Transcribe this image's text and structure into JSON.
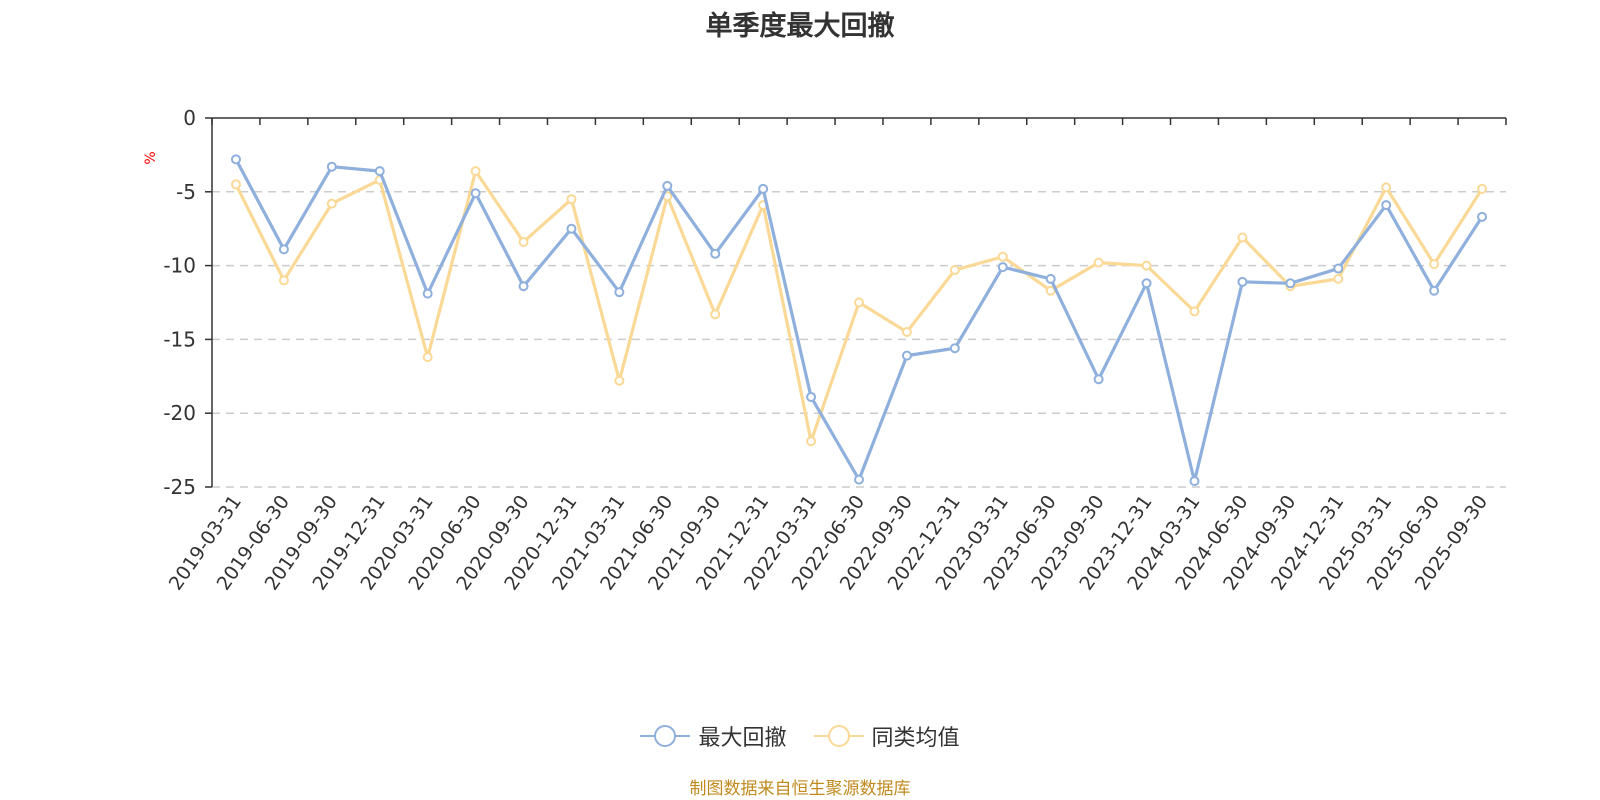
{
  "chart_data": {
    "type": "line",
    "title": "单季度最大回撤",
    "ylabel": "%",
    "ylim": [
      -25,
      0
    ],
    "yticks": [
      0,
      -5,
      -10,
      -15,
      -20,
      -25
    ],
    "grid": true,
    "legend_position": "bottom",
    "categories": [
      "2019-03-31",
      "2019-06-30",
      "2019-09-30",
      "2019-12-31",
      "2020-03-31",
      "2020-06-30",
      "2020-09-30",
      "2020-12-31",
      "2021-03-31",
      "2021-06-30",
      "2021-09-30",
      "2021-12-31",
      "2022-03-31",
      "2022-06-30",
      "2022-09-30",
      "2022-12-31",
      "2023-03-31",
      "2023-06-30",
      "2023-09-30",
      "2023-12-31",
      "2024-03-31",
      "2024-06-30",
      "2024-09-30",
      "2024-12-31",
      "2025-03-31",
      "2025-06-30",
      "2025-09-30"
    ],
    "series": [
      {
        "name": "最大回撤",
        "color": "#8fafdc",
        "values": [
          -2.8,
          -8.9,
          -3.3,
          -3.6,
          -11.9,
          -5.1,
          -11.4,
          -7.5,
          -11.8,
          -4.6,
          -9.2,
          -4.8,
          -18.9,
          -24.5,
          -16.1,
          -15.6,
          -10.1,
          -10.9,
          -17.7,
          -11.2,
          -24.6,
          -11.1,
          -11.2,
          -10.2,
          -5.9,
          -11.7,
          -6.7
        ]
      },
      {
        "name": "同类均值",
        "color": "#fad997",
        "values": [
          -4.5,
          -11.0,
          -5.8,
          -4.2,
          -16.2,
          -3.6,
          -8.4,
          -5.5,
          -17.8,
          -5.3,
          -13.3,
          -5.9,
          -21.9,
          -12.5,
          -14.5,
          -10.3,
          -9.4,
          -11.7,
          -9.8,
          -10.0,
          -13.1,
          -8.1,
          -11.4,
          -10.9,
          -4.7,
          -9.9,
          -4.8
        ]
      }
    ]
  },
  "source_note": "制图数据来自恒生聚源数据库"
}
